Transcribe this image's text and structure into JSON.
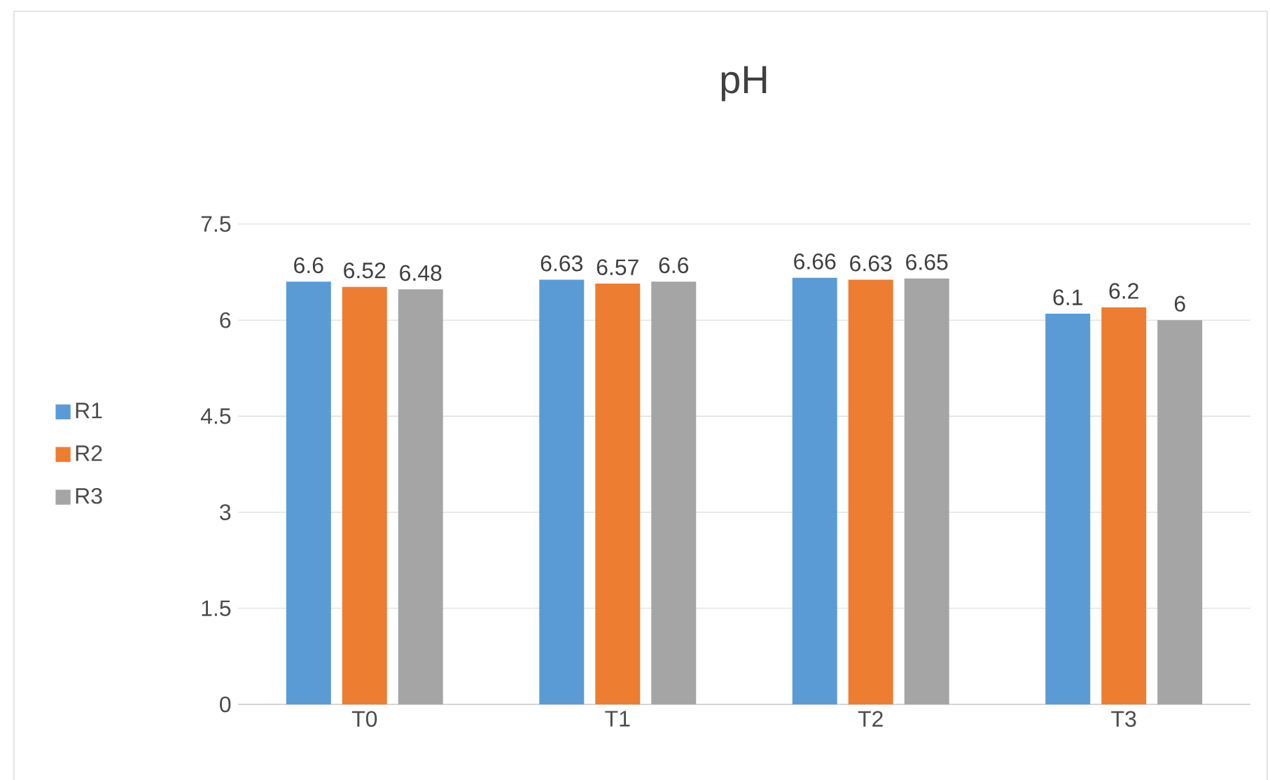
{
  "chart_data": {
    "type": "bar",
    "title": "pH",
    "categories": [
      "T0",
      "T1",
      "T2",
      "T3"
    ],
    "series": [
      {
        "name": "R1",
        "color": "#5b9bd5",
        "values": [
          6.6,
          6.63,
          6.66,
          6.1
        ]
      },
      {
        "name": "R2",
        "color": "#ed7d31",
        "values": [
          6.52,
          6.57,
          6.63,
          6.2
        ]
      },
      {
        "name": "R3",
        "color": "#a5a5a5",
        "values": [
          6.48,
          6.6,
          6.65,
          6
        ]
      }
    ],
    "ylim": [
      0,
      7.5
    ],
    "yticks": [
      0,
      1.5,
      3,
      4.5,
      6,
      7.5
    ],
    "grid": "y",
    "legend": "left",
    "data_labels": true
  }
}
